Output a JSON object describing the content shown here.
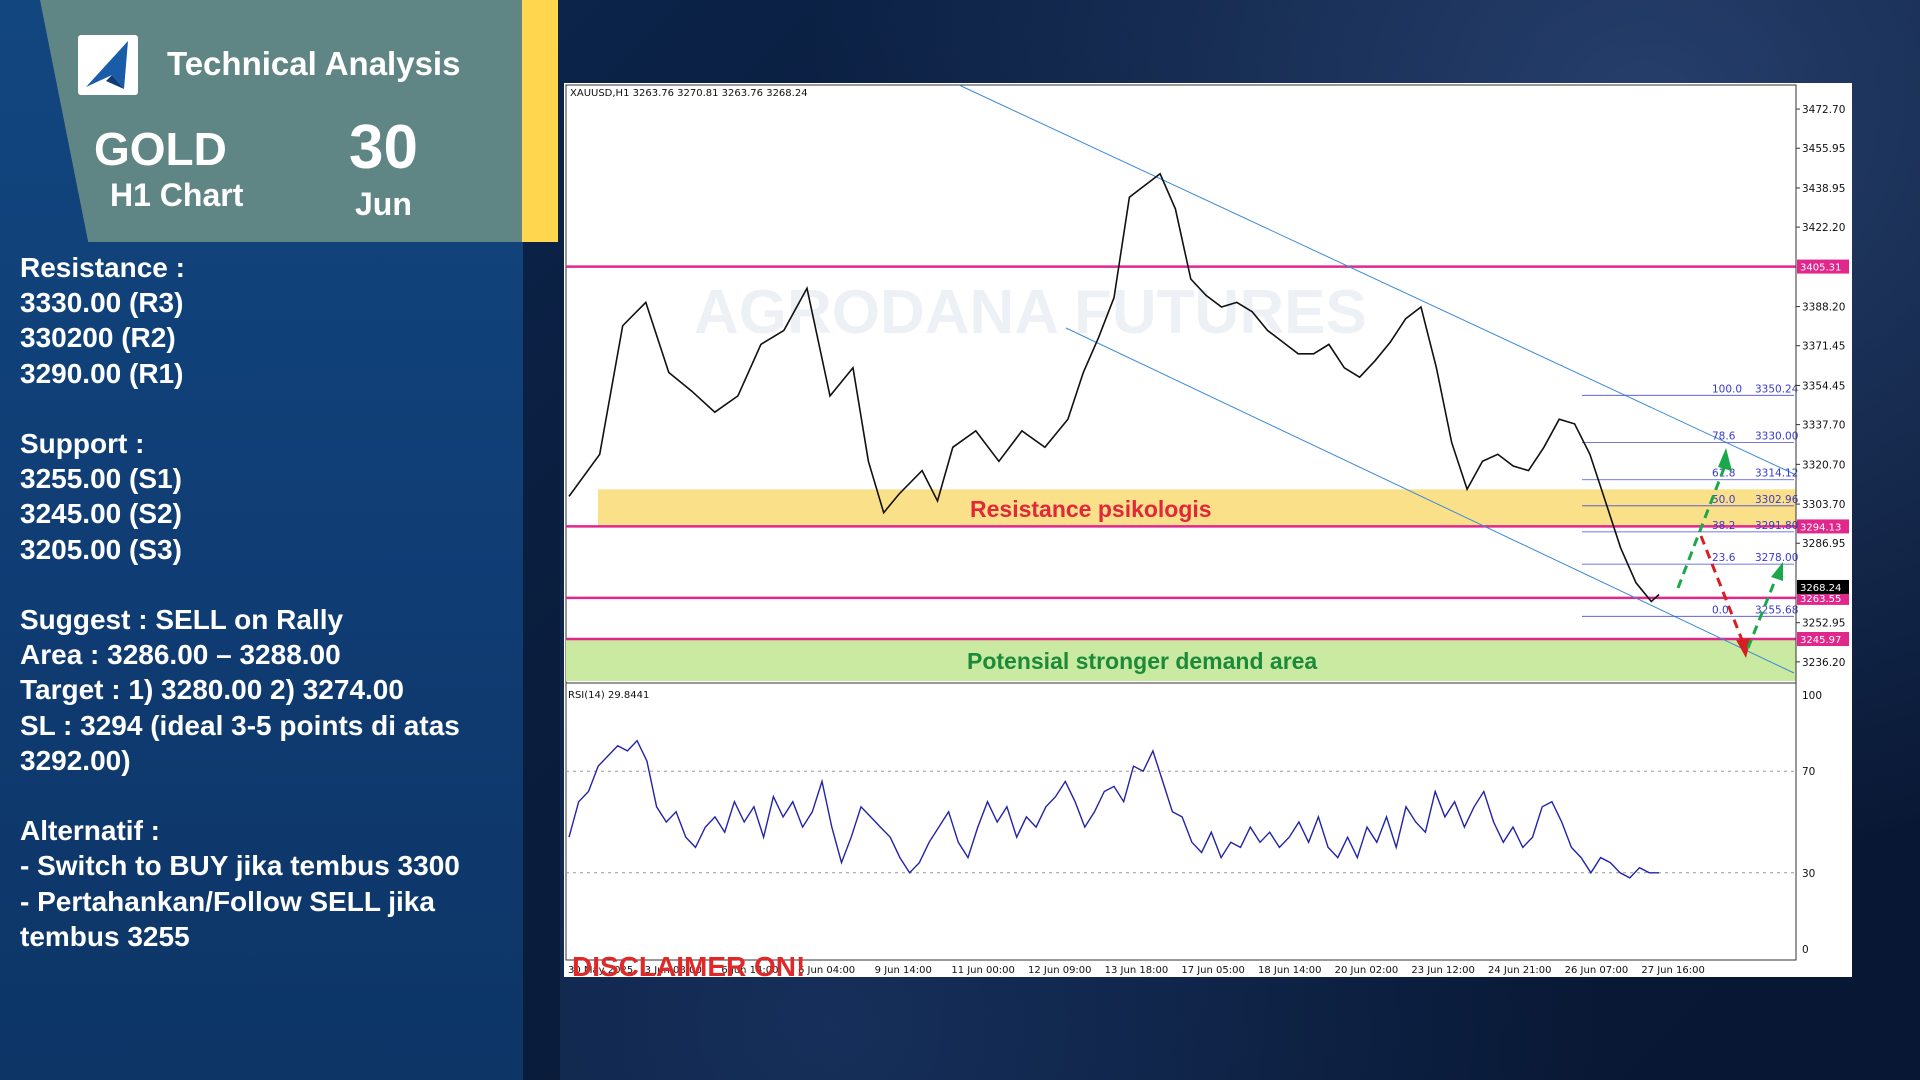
{
  "header": {
    "title": "Technical Analysis",
    "instrument": "GOLD",
    "timeframe": "H1 Chart",
    "day": "30",
    "month": "Jun"
  },
  "notes": {
    "resistance_title": "Resistance :",
    "r3": "3330.00 (R3)",
    "r2": "330200 (R2)",
    "r1": "3290.00 (R1)",
    "support_title": "Support :",
    "s1": "3255.00 (S1)",
    "s2": "3245.00 (S2)",
    "s3": "3205.00 (S3)",
    "suggest": "Suggest :  SELL on Rally",
    "area": "Area : 3286.00 – 3288.00",
    "target": "Target : 1) 3280.00 2) 3274.00",
    "sl_1": "SL : 3294 (ideal 3-5 points di atas",
    "sl_2": "3292.00)",
    "alt_title": "Alternatif :",
    "alt_1": "- Switch to BUY jika tembus 3300",
    "alt_2": "- Pertahankan/Follow SELL jika",
    "alt_3": "tembus 3255"
  },
  "colors": {
    "magenta_line": "#e0288c",
    "resistance_zone": "#fbe08a",
    "demand_zone": "#c9eaa0",
    "channel": "#3c8bd6",
    "rsi": "#2323a8",
    "bullish_arrow": "#1aa84b",
    "bearish_arrow": "#d42020"
  },
  "chart_data": [
    {
      "type": "candlestick",
      "header_text": "XAUUSD,H1  3263.76 3270.81 3263.76 3268.24",
      "symbol": "XAUUSD",
      "timeframe": "H1",
      "ohlc": {
        "open": 3263.76,
        "high": 3270.81,
        "low": 3263.76,
        "close": 3268.24
      },
      "ylim": [
        3228,
        3483
      ],
      "y_ticks": [
        "3472.70",
        "3455.95",
        "3438.95",
        "3422.20",
        "3405.31",
        "3388.20",
        "3371.45",
        "3354.45",
        "3337.70",
        "3320.70",
        "3303.70",
        "3294.13",
        "3286.95",
        "3268.24",
        "3263.55",
        "3252.95",
        "3245.97",
        "3236.20"
      ],
      "x_tick_labels": [
        "30 May 2025",
        "3 Jun 08:00",
        "6 Jun 14:00",
        "6 Jun 04:00",
        "9 Jun 14:00",
        "11 Jun 00:00",
        "12 Jun 09:00",
        "13 Jun 18:00",
        "17 Jun 05:00",
        "18 Jun 14:00",
        "20 Jun 02:00",
        "23 Jun 12:00",
        "24 Jun 21:00",
        "26 Jun 07:00",
        "27 Jun 16:00"
      ],
      "close_path": [
        [
          0,
          3307
        ],
        [
          8,
          3325
        ],
        [
          14,
          3380
        ],
        [
          20,
          3390
        ],
        [
          26,
          3360
        ],
        [
          32,
          3352
        ],
        [
          38,
          3343
        ],
        [
          44,
          3350
        ],
        [
          50,
          3372
        ],
        [
          56,
          3378
        ],
        [
          62,
          3396
        ],
        [
          68,
          3350
        ],
        [
          74,
          3362
        ],
        [
          78,
          3322
        ],
        [
          82,
          3300
        ],
        [
          86,
          3308
        ],
        [
          92,
          3318
        ],
        [
          96,
          3305
        ],
        [
          100,
          3328
        ],
        [
          106,
          3335
        ],
        [
          112,
          3322
        ],
        [
          118,
          3335
        ],
        [
          124,
          3328
        ],
        [
          130,
          3340
        ],
        [
          134,
          3360
        ],
        [
          138,
          3375
        ],
        [
          142,
          3392
        ],
        [
          146,
          3435
        ],
        [
          150,
          3440
        ],
        [
          154,
          3445
        ],
        [
          158,
          3430
        ],
        [
          162,
          3400
        ],
        [
          166,
          3393
        ],
        [
          170,
          3388
        ],
        [
          174,
          3390
        ],
        [
          178,
          3386
        ],
        [
          182,
          3378
        ],
        [
          186,
          3373
        ],
        [
          190,
          3368
        ],
        [
          194,
          3368
        ],
        [
          198,
          3372
        ],
        [
          202,
          3362
        ],
        [
          206,
          3358
        ],
        [
          210,
          3365
        ],
        [
          214,
          3373
        ],
        [
          218,
          3383
        ],
        [
          222,
          3388
        ],
        [
          226,
          3362
        ],
        [
          230,
          3330
        ],
        [
          234,
          3310
        ],
        [
          238,
          3322
        ],
        [
          242,
          3325
        ],
        [
          246,
          3320
        ],
        [
          250,
          3318
        ],
        [
          254,
          3328
        ],
        [
          258,
          3340
        ],
        [
          262,
          3338
        ],
        [
          266,
          3325
        ],
        [
          270,
          3305
        ],
        [
          274,
          3285
        ],
        [
          278,
          3270
        ],
        [
          282,
          3262
        ],
        [
          284,
          3265
        ]
      ],
      "horizontal_levels": [
        {
          "value": 3405.31,
          "label": "3405.31"
        },
        {
          "value": 3294.13,
          "label": "3294.13"
        },
        {
          "value": 3263.55,
          "label": "3263.55"
        },
        {
          "value": 3245.97,
          "label": "3245.97"
        }
      ],
      "current_price_label": "3268.24",
      "zones": [
        {
          "name": "Resistance psikologis",
          "from": 3294.13,
          "to": 3310
        },
        {
          "name": "Potensial stronger demand area",
          "from": 3228,
          "to": 3245.97
        }
      ],
      "fibonacci": [
        {
          "level": "100.0",
          "price": "3350.24"
        },
        {
          "level": "78.6",
          "price": "3330.00"
        },
        {
          "level": "61.8",
          "price": "3314.12"
        },
        {
          "level": "50.0",
          "price": "3302.96"
        },
        {
          "level": "38.2",
          "price": "3291.80"
        },
        {
          "level": "23.6",
          "price": "3278.00"
        },
        {
          "level": "0.0",
          "price": "3255.68"
        }
      ],
      "fib_values": [
        3350.24,
        3330.0,
        3314.12,
        3302.96,
        3291.8,
        3278.0,
        3255.68
      ],
      "watermark": "AGRODANA FUTURES"
    },
    {
      "type": "line",
      "title": "RSI(14) 29.8441",
      "ylim": [
        0,
        100
      ],
      "y_ticks": [
        "100",
        "70",
        "30",
        "0"
      ],
      "reference_lines": [
        70,
        30
      ],
      "values": [
        44,
        58,
        62,
        72,
        76,
        80,
        78,
        82,
        74,
        56,
        50,
        54,
        44,
        40,
        48,
        52,
        46,
        58,
        50,
        56,
        44,
        60,
        52,
        58,
        48,
        54,
        66,
        48,
        34,
        44,
        56,
        52,
        48,
        44,
        36,
        30,
        34,
        42,
        48,
        54,
        42,
        36,
        48,
        58,
        50,
        56,
        44,
        52,
        48,
        56,
        60,
        66,
        58,
        48,
        54,
        62,
        64,
        58,
        72,
        70,
        78,
        66,
        54,
        52,
        42,
        38,
        46,
        36,
        42,
        40,
        48,
        42,
        46,
        40,
        44,
        50,
        42,
        52,
        40,
        36,
        44,
        36,
        48,
        42,
        52,
        40,
        56,
        50,
        46,
        62,
        52,
        58,
        48,
        56,
        62,
        50,
        42,
        48,
        40,
        44,
        56,
        58,
        50,
        40,
        36,
        30,
        36,
        34,
        30,
        28,
        32,
        30,
        30
      ]
    }
  ],
  "disclaimer": "DISCLAIMER ON!"
}
